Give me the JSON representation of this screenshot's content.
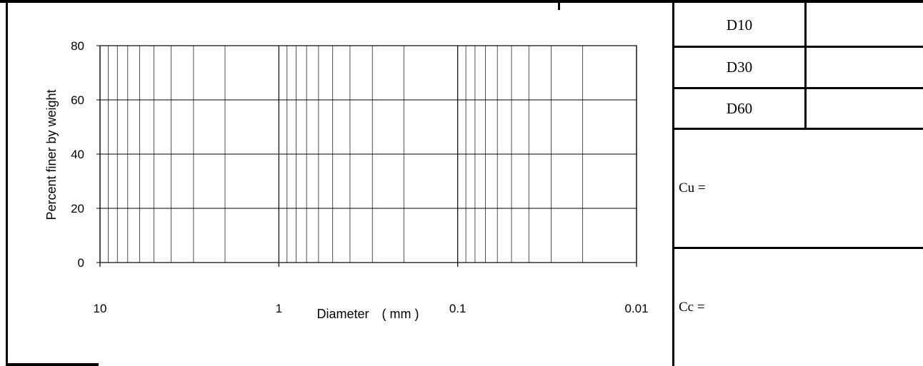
{
  "table": {
    "rows": [
      {
        "label": "D10",
        "value": ""
      },
      {
        "label": "D30",
        "value": ""
      },
      {
        "label": "D60",
        "value": ""
      }
    ],
    "cu_label": "Cu =",
    "cc_label": "Cc ="
  },
  "chart_data": {
    "type": "line",
    "title": "",
    "xlabel": "Diameter　( mm )",
    "ylabel": "Percent finer by weight",
    "x_scale": "log",
    "x_reversed": true,
    "xlim": [
      10,
      0.01
    ],
    "ylim": [
      0,
      80
    ],
    "x_ticks": [
      10,
      1,
      0.1,
      0.01
    ],
    "x_tick_labels": [
      "10",
      "1",
      "0.1",
      "0.01"
    ],
    "y_ticks": [
      0,
      20,
      40,
      60,
      80
    ],
    "y_tick_labels": [
      "0",
      "20",
      "40",
      "60",
      "80"
    ],
    "grid": true,
    "series": []
  }
}
